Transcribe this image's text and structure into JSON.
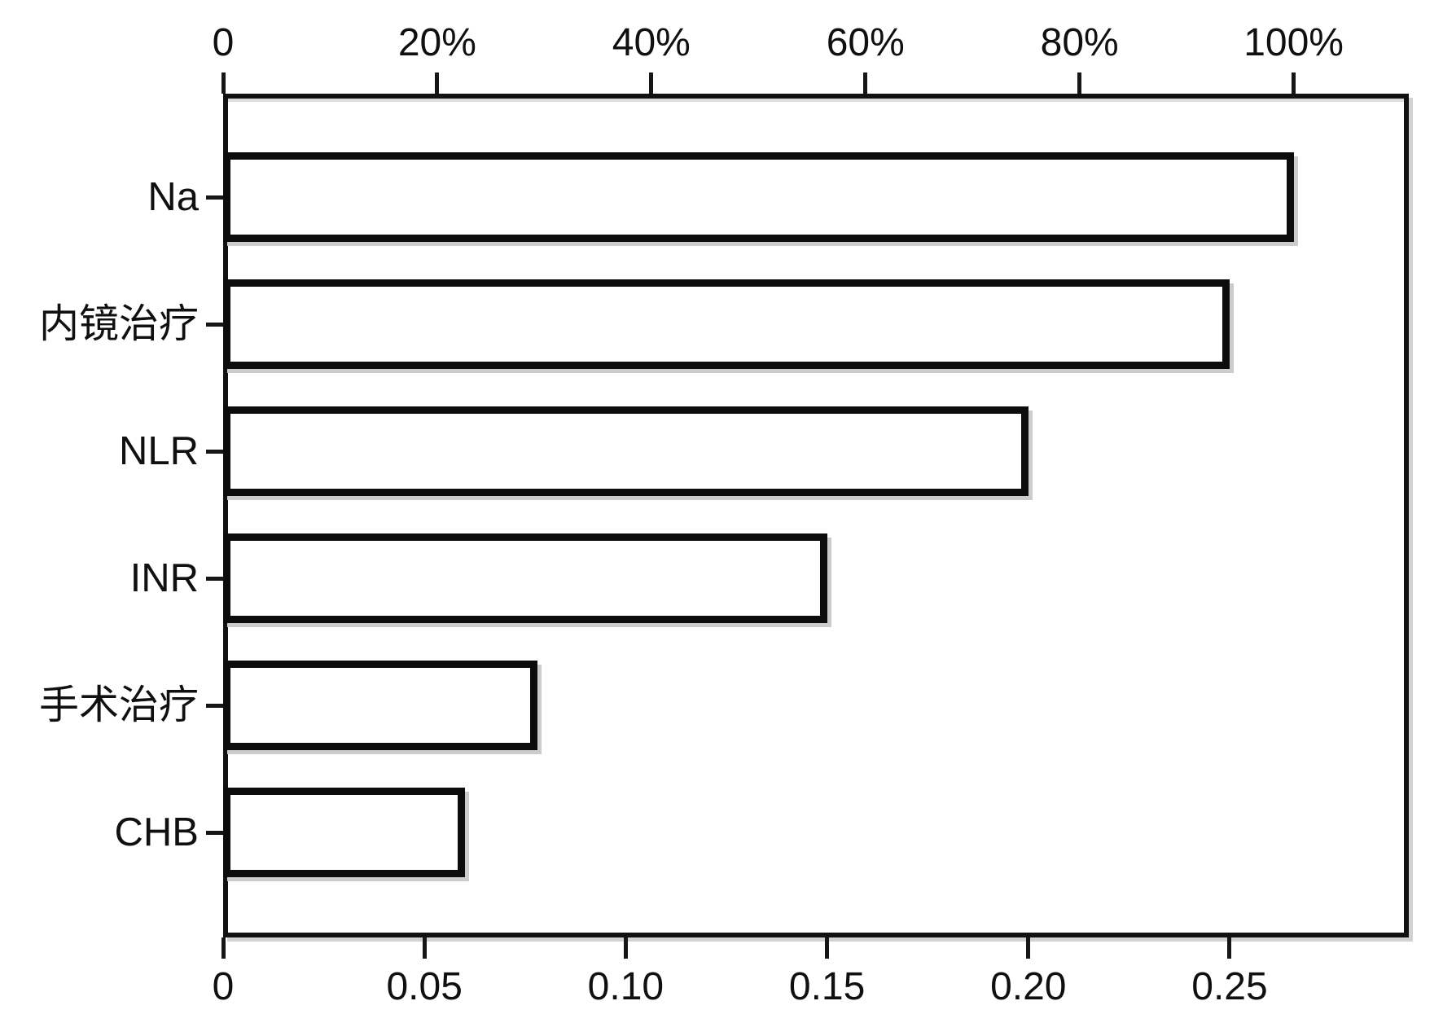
{
  "chart_data": {
    "type": "bar",
    "orientation": "horizontal",
    "title": "",
    "xlabel": "",
    "ylabel": "",
    "grid": false,
    "legend": false,
    "background_color": "#ffffff",
    "bar_fill_color": "#ffffff",
    "bar_border_color": "#0c0c0c",
    "categories": [
      "Na",
      "内镜治疗",
      "NLR",
      "INR",
      "手术治疗",
      "CHB"
    ],
    "category_slugs": [
      "na",
      "endoscopic-therapy",
      "nlr",
      "inr",
      "surgical-therapy",
      "chb"
    ],
    "values": [
      0.266,
      0.25,
      0.2,
      0.15,
      0.078,
      0.06
    ],
    "percent_values": [
      100,
      94,
      75.2,
      56.6,
      29.5,
      22.6
    ],
    "top_axis": {
      "side": "top",
      "unit": "percent",
      "ticks": [
        0,
        20,
        40,
        60,
        80,
        100
      ],
      "tick_labels": [
        "0",
        "20%",
        "40%",
        "60%",
        "80%",
        "100%"
      ],
      "percent_full_value": 0.2659,
      "min": 0,
      "max_percent": 110.7
    },
    "bottom_axis": {
      "side": "bottom",
      "unit": "importance",
      "ticks": [
        0,
        0.05,
        0.1,
        0.15,
        0.2,
        0.25
      ],
      "tick_labels": [
        "0",
        "0.05",
        "0.10",
        "0.15",
        "0.20",
        "0.25"
      ],
      "min": 0,
      "max": 0.2945
    }
  }
}
